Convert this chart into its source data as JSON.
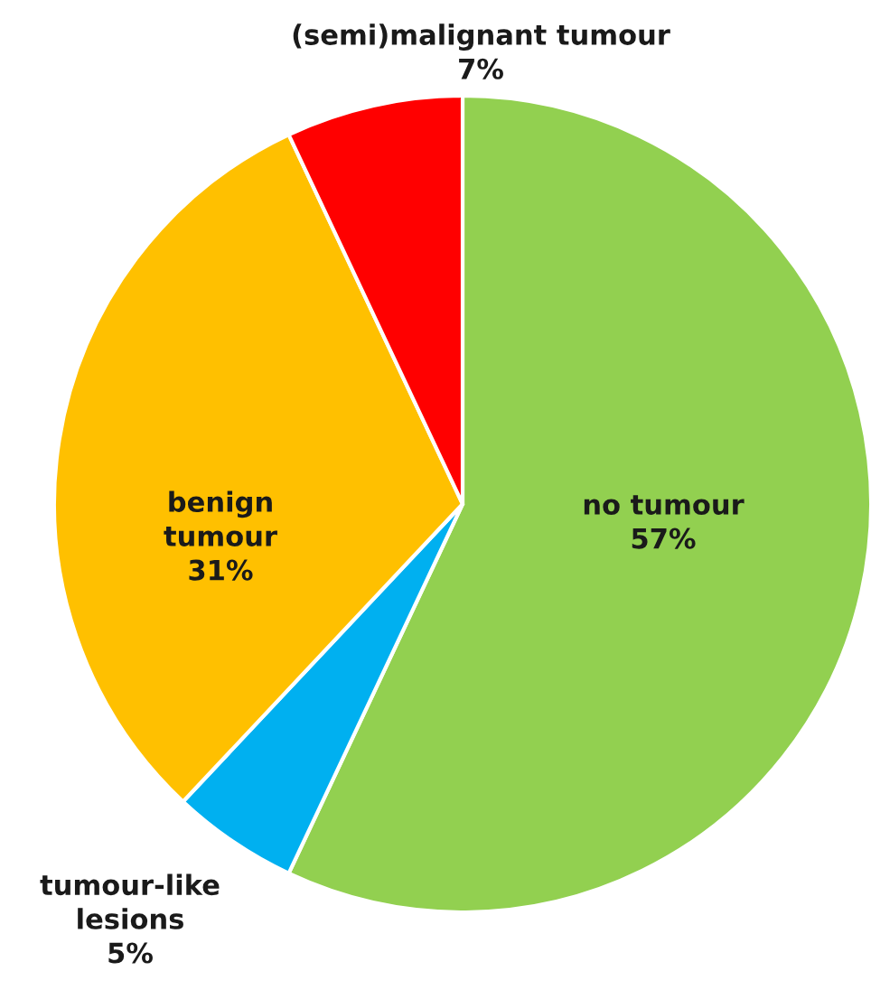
{
  "chart_data": {
    "type": "pie",
    "categories": [
      "no tumour",
      "tumour-like lesions",
      "benign tumour",
      "(semi)malignant tumour"
    ],
    "values": [
      57,
      5,
      31,
      7
    ],
    "value_labels": [
      "57%",
      "5%",
      "31%",
      "7%"
    ],
    "colors": [
      "#92d050",
      "#00b0f0",
      "#ffc000",
      "#ff0000"
    ]
  }
}
